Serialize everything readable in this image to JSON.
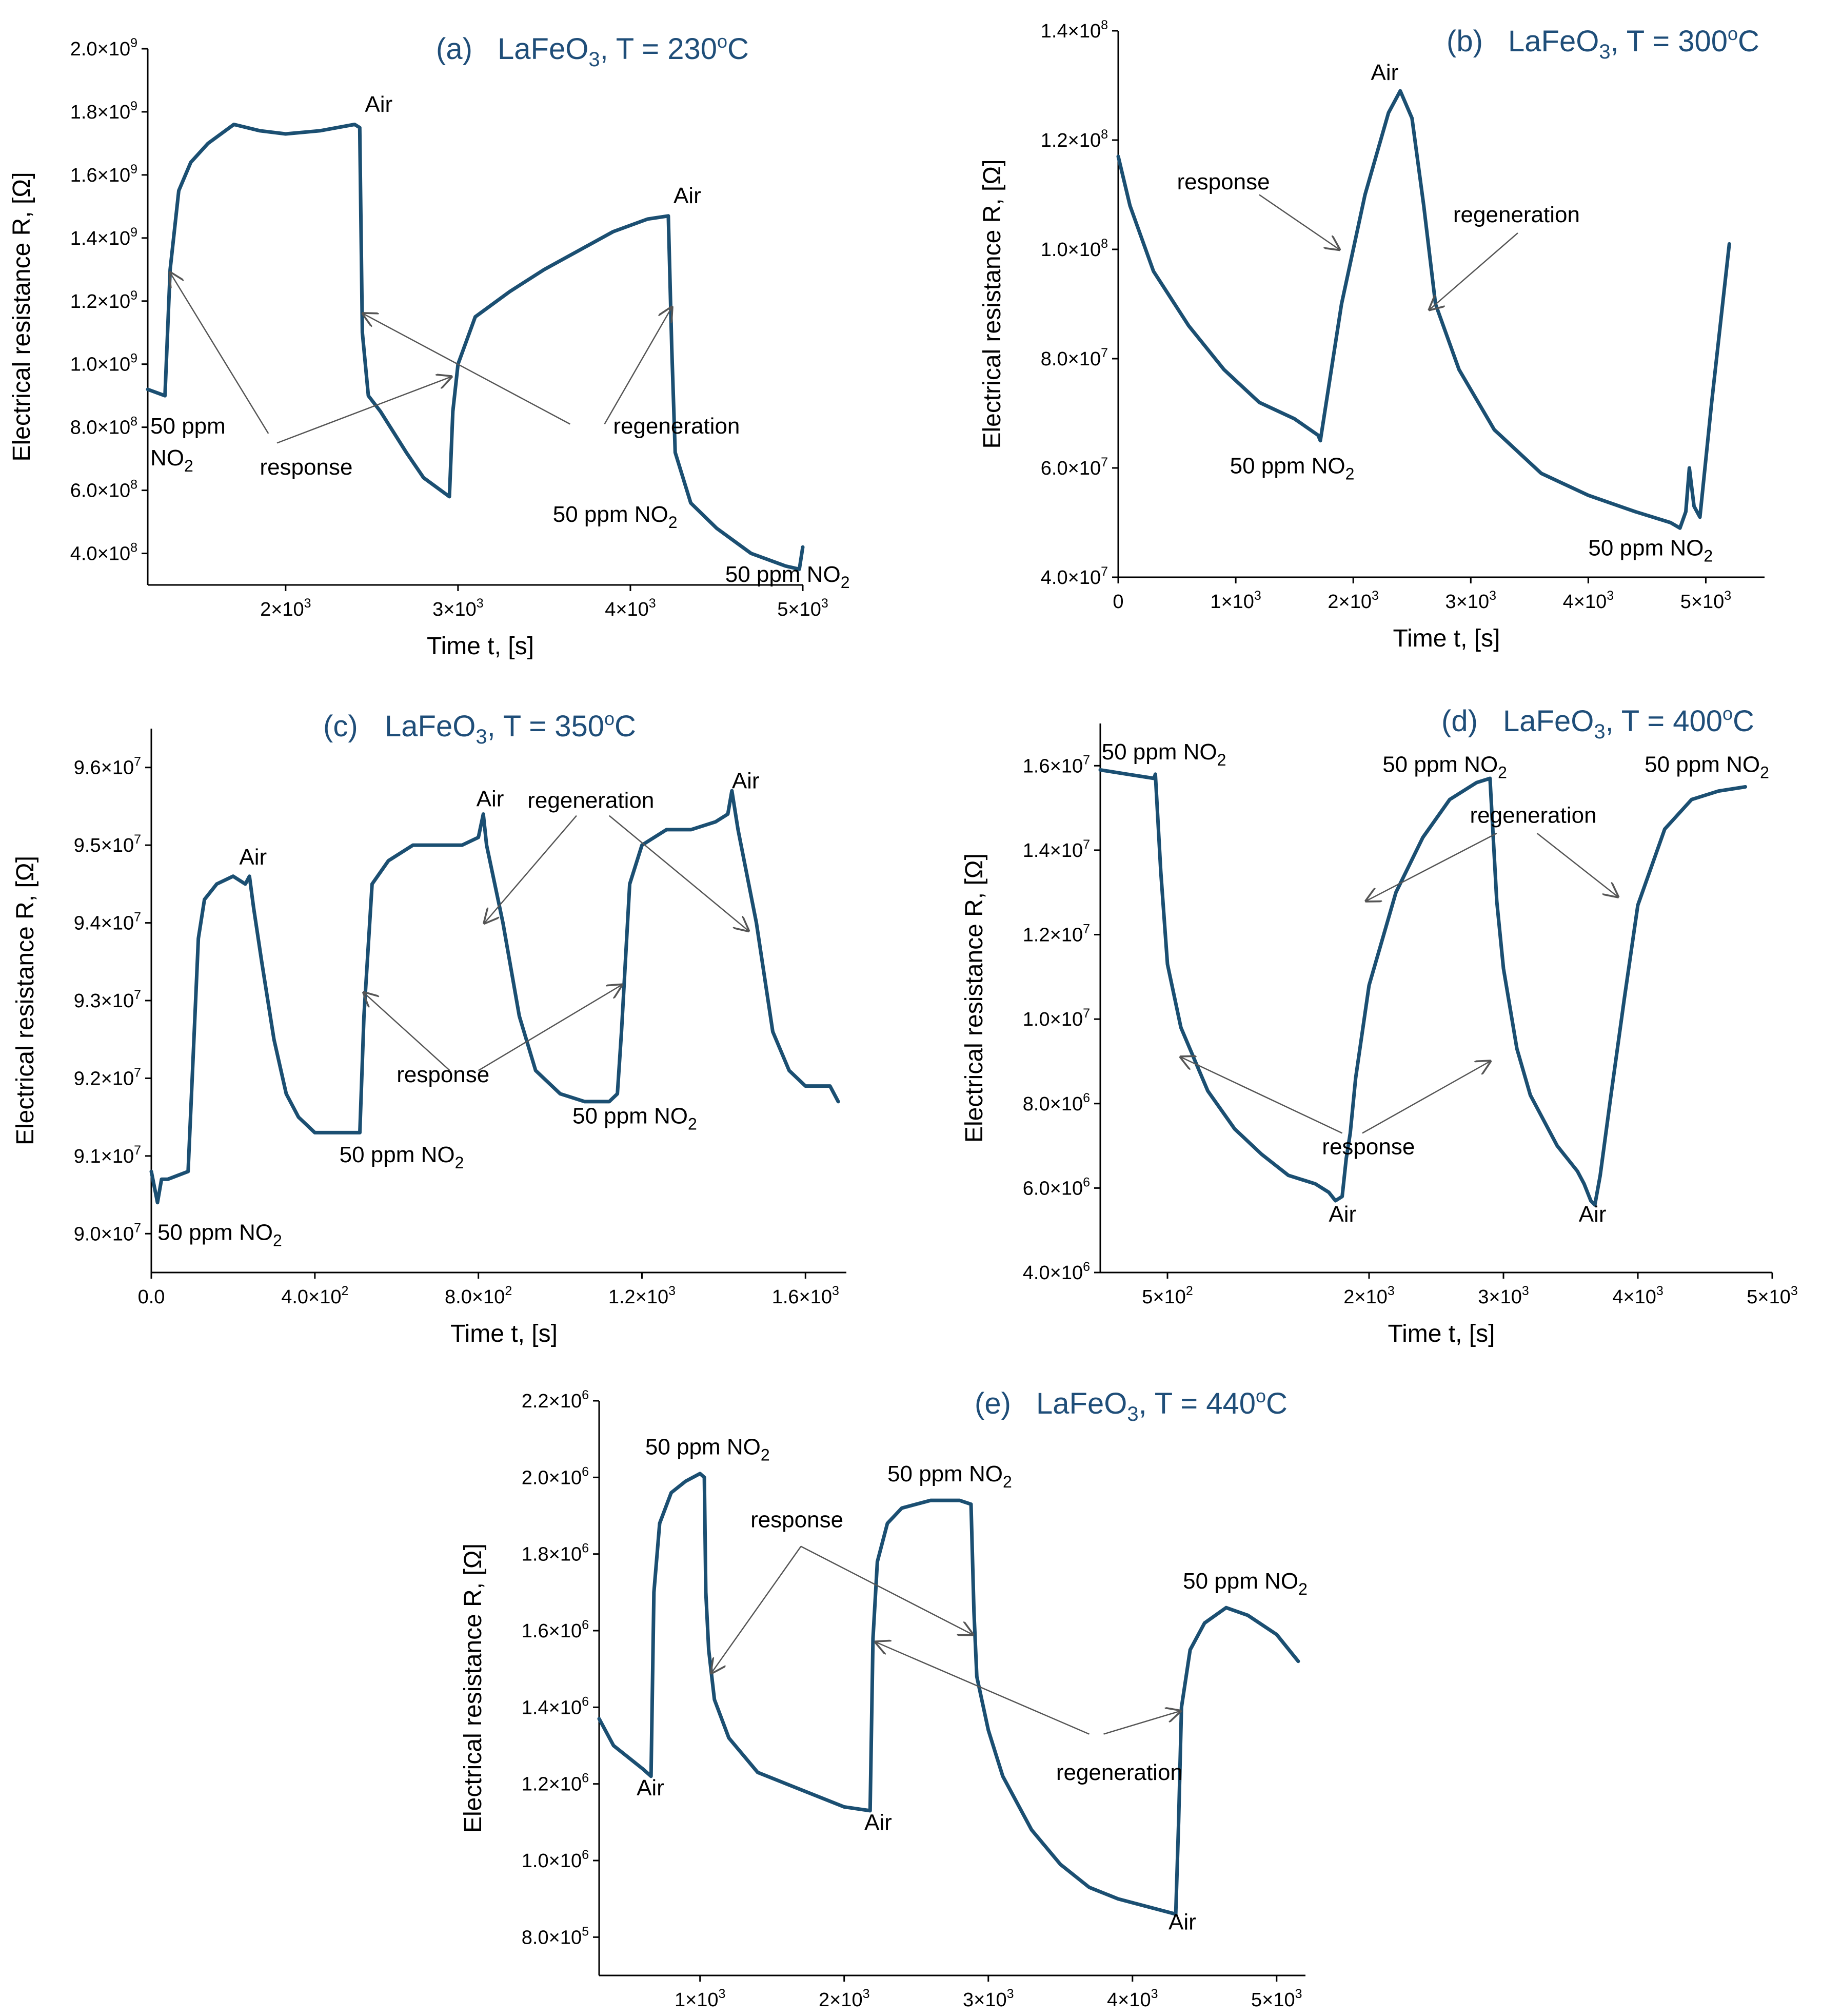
{
  "chart_data": [
    {
      "type": "line",
      "panel": "(a)",
      "title": "LaFeO3, T = 230oC",
      "xlabel": "Time t, [s]",
      "ylabel": "Electrical resistance R, [Ω]",
      "xlim": [
        1200,
        5000
      ],
      "ylim": [
        300000000,
        2000000000
      ],
      "xticks": [
        2000,
        3000,
        4000,
        5000
      ],
      "xtick_labels": [
        "2×10^3",
        "3×10^3",
        "4×10^3",
        "5×10^3"
      ],
      "yticks": [
        400000000,
        600000000,
        800000000,
        1000000000,
        1200000000,
        1400000000,
        1600000000,
        1800000000,
        2000000000
      ],
      "ytick_labels": [
        "4.0×10^8",
        "6.0×10^8",
        "8.0×10^8",
        "1.0×10^9",
        "1.2×10^9",
        "1.4×10^9",
        "1.6×10^9",
        "1.8×10^9",
        "2.0×10^9"
      ],
      "series": [
        {
          "name": "R",
          "x": [
            1200,
            1300,
            1330,
            1380,
            1450,
            1550,
            1700,
            1850,
            2000,
            2200,
            2400,
            2430,
            2445,
            2480,
            2550,
            2700,
            2800,
            2950,
            2970,
            3000,
            3100,
            3300,
            3500,
            3700,
            3900,
            4100,
            4220,
            4240,
            4260,
            4350,
            4500,
            4700,
            4900,
            4980,
            5000
          ],
          "y": [
            920000000,
            900000000,
            1300000000,
            1550000000,
            1640000000,
            1700000000,
            1760000000,
            1740000000,
            1730000000,
            1740000000,
            1760000000,
            1750000000,
            1100000000,
            900000000,
            850000000,
            720000000,
            640000000,
            580000000,
            850000000,
            1000000000,
            1150000000,
            1230000000,
            1300000000,
            1360000000,
            1420000000,
            1460000000,
            1470000000,
            1050000000,
            720000000,
            560000000,
            480000000,
            400000000,
            360000000,
            350000000,
            420000000
          ]
        }
      ],
      "annotations": [
        {
          "text": "Air",
          "x": 2460,
          "y": 1800000000
        },
        {
          "text": "Air",
          "x": 4250,
          "y": 1510000000
        },
        {
          "text": "50 ppm",
          "sub_text": "NO2",
          "x": 1215,
          "y": 780000000
        },
        {
          "text": "response",
          "x": 1850,
          "y": 650000000
        },
        {
          "text": "regeneration",
          "x": 3900,
          "y": 780000000
        },
        {
          "text": "50 ppm NO2",
          "x": 3550,
          "y": 500000000
        },
        {
          "text": "50 ppm NO2",
          "x": 4550,
          "y": 310000000
        }
      ],
      "arrows": [
        {
          "from": [
            1900,
            780000000
          ],
          "to": [
            1330,
            1290000000
          ]
        },
        {
          "from": [
            1950,
            750000000
          ],
          "to": [
            2960,
            960000000
          ]
        },
        {
          "from": [
            3650,
            810000000
          ],
          "to": [
            2450,
            1160000000
          ]
        },
        {
          "from": [
            3850,
            810000000
          ],
          "to": [
            4240,
            1180000000
          ]
        }
      ]
    },
    {
      "type": "line",
      "panel": "(b)",
      "title": "LaFeO3, T = 300oC",
      "xlabel": "Time t, [s]",
      "ylabel": "Electrical resistance R, [Ω]",
      "xlim": [
        0,
        5500
      ],
      "ylim": [
        40000000,
        140000000
      ],
      "xticks": [
        0,
        1000,
        2000,
        3000,
        4000,
        5000
      ],
      "xtick_labels": [
        "0",
        "1×10^3",
        "2×10^3",
        "3×10^3",
        "4×10^3",
        "5×10^3"
      ],
      "yticks": [
        40000000,
        60000000,
        80000000,
        100000000,
        120000000,
        140000000
      ],
      "ytick_labels": [
        "4.0×10^7",
        "6.0×10^7",
        "8.0×10^7",
        "1.0×10^8",
        "1.2×10^8",
        "1.4×10^8"
      ],
      "series": [
        {
          "name": "R",
          "x": [
            0,
            100,
            300,
            600,
            900,
            1200,
            1500,
            1700,
            1720,
            1900,
            2100,
            2300,
            2400,
            2500,
            2600,
            2700,
            2900,
            3200,
            3600,
            4000,
            4400,
            4700,
            4780,
            4830,
            4860,
            4900,
            4950,
            5050,
            5200
          ],
          "y": [
            117000000,
            108000000,
            96000000,
            86000000,
            78000000,
            72000000,
            69000000,
            66000000,
            65000000,
            90000000,
            110000000,
            125000000,
            129000000,
            124000000,
            108000000,
            90000000,
            78000000,
            67000000,
            59000000,
            55000000,
            52000000,
            50000000,
            49000000,
            52000000,
            60000000,
            53000000,
            51000000,
            72000000,
            101000000
          ]
        }
      ],
      "annotations": [
        {
          "text": "Air",
          "x": 2150,
          "y": 131000000
        },
        {
          "text": "response",
          "x": 500,
          "y": 111000000
        },
        {
          "text": "regeneration",
          "x": 2850,
          "y": 105000000
        },
        {
          "text": "50 ppm NO2",
          "x": 950,
          "y": 59000000
        },
        {
          "text": "50 ppm NO2",
          "x": 4000,
          "y": 44000000
        }
      ],
      "arrows": [
        {
          "from": [
            1200,
            110000000
          ],
          "to": [
            1880,
            100000000
          ]
        },
        {
          "from": [
            3400,
            103000000
          ],
          "to": [
            2650,
            89000000
          ]
        }
      ]
    },
    {
      "type": "line",
      "panel": "(c)",
      "title": "LaFeO3, T = 350oC",
      "xlabel": "Time t, [s]",
      "ylabel": "Electrical resistance R, [Ω]",
      "xlim": [
        0,
        1700
      ],
      "ylim": [
        89500000,
        96500000
      ],
      "xticks": [
        0,
        400,
        800,
        1200,
        1600
      ],
      "xtick_labels": [
        "0.0",
        "4.0×10^2",
        "8.0×10^2",
        "1.2×10^3",
        "1.6×10^3"
      ],
      "yticks": [
        90000000,
        91000000,
        92000000,
        93000000,
        94000000,
        95000000,
        96000000
      ],
      "ytick_labels": [
        "9.0×10^7",
        "9.1×10^7",
        "9.2×10^7",
        "9.3×10^7",
        "9.4×10^7",
        "9.5×10^7",
        "9.6×10^7"
      ],
      "series": [
        {
          "name": "R",
          "x": [
            0,
            15,
            25,
            40,
            90,
            100,
            115,
            130,
            160,
            200,
            230,
            240,
            250,
            270,
            300,
            330,
            360,
            400,
            440,
            480,
            510,
            520,
            540,
            580,
            640,
            700,
            760,
            800,
            812,
            820,
            860,
            900,
            940,
            1000,
            1060,
            1120,
            1140,
            1150,
            1170,
            1200,
            1260,
            1320,
            1380,
            1410,
            1420,
            1435,
            1480,
            1520,
            1560,
            1600,
            1660,
            1680
          ],
          "y": [
            90800000,
            90400000,
            90700000,
            90700000,
            90800000,
            92000000,
            93800000,
            94300000,
            94500000,
            94600000,
            94500000,
            94600000,
            94200000,
            93500000,
            92500000,
            91800000,
            91500000,
            91300000,
            91300000,
            91300000,
            91300000,
            92800000,
            94500000,
            94800000,
            95000000,
            95000000,
            95000000,
            95100000,
            95400000,
            95000000,
            94000000,
            92800000,
            92100000,
            91800000,
            91700000,
            91700000,
            91800000,
            92600000,
            94500000,
            95000000,
            95200000,
            95200000,
            95300000,
            95400000,
            95700000,
            95200000,
            94000000,
            92600000,
            92100000,
            91900000,
            91900000,
            91700000
          ]
        }
      ],
      "annotations": [
        {
          "text": "Air",
          "x": 215,
          "y": 94750000
        },
        {
          "text": "Air",
          "x": 795,
          "y": 95500000
        },
        {
          "text": "Air",
          "x": 1420,
          "y": 95730000
        },
        {
          "text": "regeneration",
          "x": 920,
          "y": 95480000
        },
        {
          "text": "response",
          "x": 600,
          "y": 91950000
        },
        {
          "text": "50 ppm NO2",
          "x": 15,
          "y": 89920000
        },
        {
          "text": "50 ppm NO2",
          "x": 460,
          "y": 90920000
        },
        {
          "text": "50 ppm NO2",
          "x": 1030,
          "y": 91420000
        }
      ],
      "arrows": [
        {
          "from": [
            1040,
            95380000
          ],
          "to": [
            815,
            94000000
          ]
        },
        {
          "from": [
            1120,
            95380000
          ],
          "to": [
            1460,
            93900000
          ]
        },
        {
          "from": [
            730,
            92100000
          ],
          "to": [
            520,
            93100000
          ]
        },
        {
          "from": [
            800,
            92100000
          ],
          "to": [
            1150,
            93200000
          ]
        }
      ]
    },
    {
      "type": "line",
      "panel": "(d)",
      "title": "LaFeO3, T = 400oC",
      "xlabel": "Time t, [s]",
      "ylabel": "Electrical resistance R, [Ω]",
      "xlim": [
        0,
        5000
      ],
      "ylim": [
        4000000,
        17000000
      ],
      "xticks": [
        500,
        2000,
        3000,
        4000,
        5000
      ],
      "xtick_labels": [
        "5×10^2",
        "2×10^3",
        "3×10^3",
        "4×10^3",
        "5×10^3"
      ],
      "yticks": [
        4000000,
        6000000,
        8000000,
        10000000,
        12000000,
        14000000,
        16000000
      ],
      "ytick_labels": [
        "4.0×10^6",
        "6.0×10^6",
        "8.0×10^6",
        "1.0×10^7",
        "1.2×10^7",
        "1.4×10^7",
        "1.6×10^7"
      ],
      "series": [
        {
          "name": "R",
          "x": [
            0,
            200,
            400,
            410,
            450,
            500,
            600,
            800,
            1000,
            1200,
            1400,
            1600,
            1700,
            1750,
            1800,
            1830,
            1860,
            1900,
            2000,
            2200,
            2400,
            2600,
            2800,
            2900,
            2905,
            2950,
            3000,
            3100,
            3200,
            3400,
            3550,
            3600,
            3650,
            3680,
            3720,
            3800,
            3900,
            4000,
            4200,
            4400,
            4600,
            4800
          ],
          "y": [
            15900000,
            15800000,
            15700000,
            15800000,
            13500000,
            11300000,
            9800000,
            8300000,
            7400000,
            6800000,
            6300000,
            6100000,
            5900000,
            5700000,
            5800000,
            6700000,
            7300000,
            8600000,
            10800000,
            13000000,
            14300000,
            15200000,
            15600000,
            15700000,
            15400000,
            12800000,
            11200000,
            9300000,
            8200000,
            7000000,
            6400000,
            6100000,
            5700000,
            5600000,
            6300000,
            8200000,
            10500000,
            12700000,
            14500000,
            15200000,
            15400000,
            15500000
          ]
        }
      ],
      "annotations": [
        {
          "text": "50 ppm NO2",
          "x": 10,
          "y": 16150000
        },
        {
          "text": "50 ppm NO2",
          "x": 2100,
          "y": 15850000
        },
        {
          "text": "50 ppm NO2",
          "x": 4050,
          "y": 15850000
        },
        {
          "text": "regeneration",
          "x": 2750,
          "y": 14650000
        },
        {
          "text": "response",
          "x": 1650,
          "y": 6800000
        },
        {
          "text": "Air",
          "x": 1700,
          "y": 5200000
        },
        {
          "text": "Air",
          "x": 3560,
          "y": 5200000
        }
      ],
      "arrows": [
        {
          "from": [
            2950,
            14400000
          ],
          "to": [
            1980,
            12800000
          ]
        },
        {
          "from": [
            3250,
            14400000
          ],
          "to": [
            3850,
            12900000
          ]
        },
        {
          "from": [
            1800,
            7300000
          ],
          "to": [
            600,
            9100000
          ]
        },
        {
          "from": [
            1950,
            7300000
          ],
          "to": [
            2900,
            9000000
          ]
        }
      ]
    },
    {
      "type": "line",
      "panel": "(e)",
      "title": "LaFeO3, T = 440oC",
      "xlabel": "Time t, [s]",
      "ylabel": "Electrical resistance R, [Ω]",
      "xlim": [
        300,
        5200
      ],
      "ylim": [
        700000,
        2200000
      ],
      "xticks": [
        1000,
        2000,
        3000,
        4000,
        5000
      ],
      "xtick_labels": [
        "1×10^3",
        "2×10^3",
        "3×10^3",
        "4×10^3",
        "5×10^3"
      ],
      "yticks": [
        800000,
        1000000,
        1200000,
        1400000,
        1600000,
        1800000,
        2000000,
        2200000
      ],
      "ytick_labels": [
        "8.0×10^5",
        "1.0×10^6",
        "1.2×10^6",
        "1.4×10^6",
        "1.6×10^6",
        "1.8×10^6",
        "2.0×10^6",
        "2.2×10^6"
      ],
      "series": [
        {
          "name": "R",
          "x": [
            300,
            400,
            500,
            600,
            660,
            680,
            720,
            800,
            900,
            1000,
            1030,
            1040,
            1060,
            1100,
            1200,
            1400,
            1600,
            1800,
            2000,
            2180,
            2200,
            2230,
            2300,
            2400,
            2600,
            2800,
            2880,
            2900,
            2920,
            3000,
            3100,
            3300,
            3500,
            3700,
            3900,
            4100,
            4300,
            4320,
            4340,
            4400,
            4500,
            4650,
            4800,
            5000,
            5150
          ],
          "y": [
            1370000,
            1300000,
            1270000,
            1240000,
            1220000,
            1700000,
            1880000,
            1960000,
            1990000,
            2010000,
            2000000,
            1700000,
            1550000,
            1420000,
            1320000,
            1230000,
            1200000,
            1170000,
            1140000,
            1130000,
            1580000,
            1780000,
            1880000,
            1920000,
            1940000,
            1940000,
            1930000,
            1650000,
            1480000,
            1340000,
            1220000,
            1080000,
            990000,
            930000,
            900000,
            880000,
            860000,
            1100000,
            1400000,
            1550000,
            1620000,
            1660000,
            1640000,
            1590000,
            1520000
          ]
        }
      ],
      "annotations": [
        {
          "text": "50 ppm NO2",
          "x": 620,
          "y": 2060000
        },
        {
          "text": "50 ppm NO2",
          "x": 2300,
          "y": 1990000
        },
        {
          "text": "50 ppm NO2",
          "x": 4350,
          "y": 1710000
        },
        {
          "text": "response",
          "x": 1350,
          "y": 1870000
        },
        {
          "text": "regeneration",
          "x": 3470,
          "y": 1210000
        },
        {
          "text": "Air",
          "x": 560,
          "y": 1170000
        },
        {
          "text": "Air",
          "x": 2140,
          "y": 1080000
        },
        {
          "text": "Air",
          "x": 4250,
          "y": 820000
        }
      ],
      "arrows": [
        {
          "from": [
            1700,
            1820000
          ],
          "to": [
            1080,
            1490000
          ]
        },
        {
          "from": [
            1700,
            1820000
          ],
          "to": [
            2890,
            1590000
          ]
        },
        {
          "from": [
            3700,
            1330000
          ],
          "to": [
            2220,
            1570000
          ]
        },
        {
          "from": [
            3800,
            1330000
          ],
          "to": [
            4330,
            1390000
          ]
        }
      ]
    }
  ]
}
